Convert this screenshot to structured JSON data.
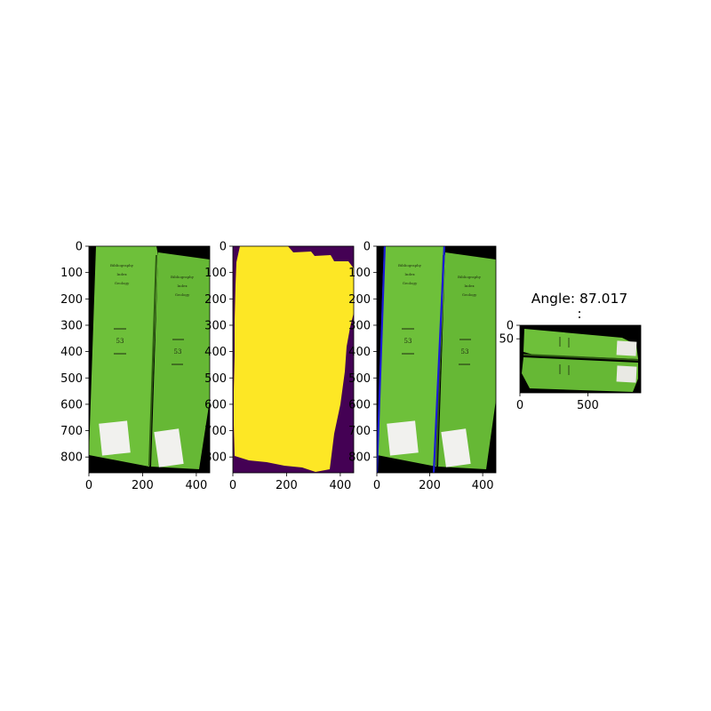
{
  "chart_data": [
    {
      "type": "image",
      "content": "green-books-photo",
      "xlim": [
        0,
        450
      ],
      "ylim": [
        0,
        860
      ],
      "x_ticks": [
        "0",
        "200",
        "400"
      ],
      "y_ticks": [
        "0",
        "100",
        "200",
        "300",
        "400",
        "500",
        "600",
        "700",
        "800"
      ]
    },
    {
      "type": "image",
      "content": "binary-mask",
      "colors": {
        "foreground": "#fde725",
        "background": "#440154"
      },
      "xlim": [
        0,
        450
      ],
      "ylim": [
        0,
        860
      ],
      "x_ticks": [
        "0",
        "200",
        "400"
      ],
      "y_ticks": [
        "0",
        "100",
        "200",
        "300",
        "400",
        "500",
        "600",
        "700",
        "800"
      ]
    },
    {
      "type": "image",
      "content": "green-books-photo-with-detected-lines",
      "line_color": "#1a1ad6",
      "lines": [
        {
          "x_top": 30,
          "x_bottom": 0
        },
        {
          "x_top": 255,
          "x_bottom": 215
        }
      ],
      "xlim": [
        0,
        450
      ],
      "ylim": [
        0,
        860
      ],
      "x_ticks": [
        "0",
        "200",
        "400"
      ],
      "y_ticks": [
        "0",
        "100",
        "200",
        "300",
        "400",
        "500",
        "600",
        "700",
        "800"
      ]
    },
    {
      "type": "image",
      "content": "rotated-books",
      "title": "Angle: 87.017",
      "title_line2": ":",
      "angle": 87.017,
      "xlim": [
        0,
        890
      ],
      "ylim": [
        0,
        250
      ],
      "x_ticks": [
        "0",
        "500"
      ],
      "y_ticks": [
        "0",
        "50"
      ]
    }
  ]
}
